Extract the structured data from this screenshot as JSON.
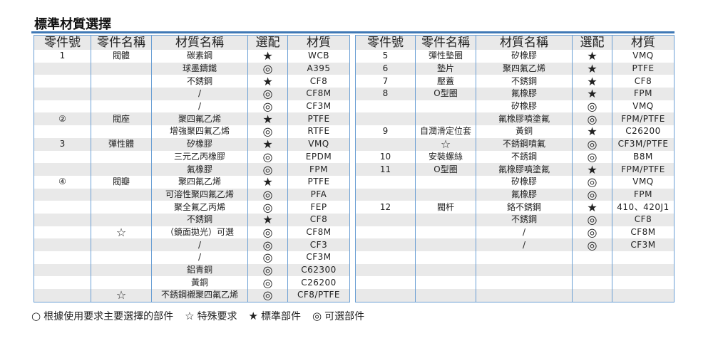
{
  "title": "標準材質選擇",
  "columns": [
    "零件號",
    "零件名稱",
    "材質名稱",
    "選配",
    "材質"
  ],
  "left_rows": [
    [
      "1",
      "閥體",
      "碳素鋼",
      "★",
      "WCB"
    ],
    [
      "",
      "",
      "球墨鑄鐵",
      "◎",
      "A395"
    ],
    [
      "",
      "",
      "不銹鋼",
      "★",
      "CF8"
    ],
    [
      "",
      "",
      "/",
      "◎",
      "CF8M"
    ],
    [
      "",
      "",
      "/",
      "◎",
      "CF3M"
    ],
    [
      "②",
      "閥座",
      "聚四氟乙烯",
      "★",
      "PTFE"
    ],
    [
      "",
      "",
      "增強聚四氟乙烯",
      "◎",
      "RTFE"
    ],
    [
      "3",
      "彈性體",
      "矽橡膠",
      "★",
      "VMQ"
    ],
    [
      "",
      "",
      "三元乙丙橡膠",
      "◎",
      "EPDM"
    ],
    [
      "",
      "",
      "氟橡膠",
      "◎",
      "FPM"
    ],
    [
      "④",
      "閥瓣",
      "聚四氟乙烯",
      "★",
      "PTFE"
    ],
    [
      "",
      "",
      "可溶性聚四氟乙烯",
      "◎",
      "PFA"
    ],
    [
      "",
      "",
      "聚全氟乙丙烯",
      "◎",
      "FEP"
    ],
    [
      "",
      "",
      "不銹鋼",
      "★",
      "CF8"
    ],
    [
      "",
      "☆",
      "（鏡面拋光）可選",
      "◎",
      "CF8M"
    ],
    [
      "",
      "",
      "/",
      "◎",
      "CF3"
    ],
    [
      "",
      "",
      "/",
      "◎",
      "CF3M"
    ],
    [
      "",
      "",
      "鋁青銅",
      "◎",
      "C62300"
    ],
    [
      "",
      "",
      "黃銅",
      "◎",
      "C26200"
    ],
    [
      "",
      "☆",
      "不銹鋼襯聚四氟乙烯",
      "◎",
      "CF8/PTFE"
    ]
  ],
  "right_rows": [
    [
      "5",
      "彈性墊圈",
      "矽橡膠",
      "★",
      "VMQ"
    ],
    [
      "6",
      "墊片",
      "聚四氟乙烯",
      "★",
      "PTFE"
    ],
    [
      "7",
      "壓蓋",
      "不銹鋼",
      "★",
      "CF8"
    ],
    [
      "8",
      "O型圈",
      "氟橡膠",
      "★",
      "FPM"
    ],
    [
      "",
      "",
      "矽橡膠",
      "◎",
      "VMQ"
    ],
    [
      "",
      "",
      "氟橡膠噴塗氟",
      "◎",
      "FPM/PTFE"
    ],
    [
      "9",
      "自潤滑定位套",
      "黃銅",
      "★",
      "C26200"
    ],
    [
      "",
      "☆",
      "不銹鋼噴氟",
      "◎",
      "CF3M/PTFE"
    ],
    [
      "10",
      "安裝螺絲",
      "不銹鋼",
      "◎",
      "B8M"
    ],
    [
      "11",
      "O型圈",
      "氟橡膠噴塗氟",
      "★",
      "FPM/PTFE"
    ],
    [
      "",
      "",
      "矽橡膠",
      "◎",
      "VMQ"
    ],
    [
      "",
      "",
      "氟橡膠",
      "◎",
      "FPM"
    ],
    [
      "12",
      "閥杆",
      "鉻不銹鋼",
      "★",
      "410、420J1"
    ],
    [
      "",
      "",
      "不銹鋼",
      "◎",
      "CF8"
    ],
    [
      "",
      "",
      "/",
      "◎",
      "CF8M"
    ],
    [
      "",
      "",
      "/",
      "◎",
      "CF3M"
    ],
    [
      "",
      "",
      "",
      "",
      ""
    ],
    [
      "",
      "",
      "",
      "",
      ""
    ],
    [
      "",
      "",
      "",
      "",
      ""
    ],
    [
      "",
      "",
      "",
      "",
      ""
    ]
  ],
  "legend": [
    {
      "symbol": "○",
      "label": "根據使用要求主要選擇的部件"
    },
    {
      "symbol": "☆",
      "label": "特殊要求"
    },
    {
      "symbol": "★",
      "label": "標準部件"
    },
    {
      "symbol": "◎",
      "label": "可選部件"
    }
  ],
  "colors": {
    "border": "#6a9fd4",
    "rule": "#3f78b5",
    "stripe": "#e9e9e9"
  }
}
